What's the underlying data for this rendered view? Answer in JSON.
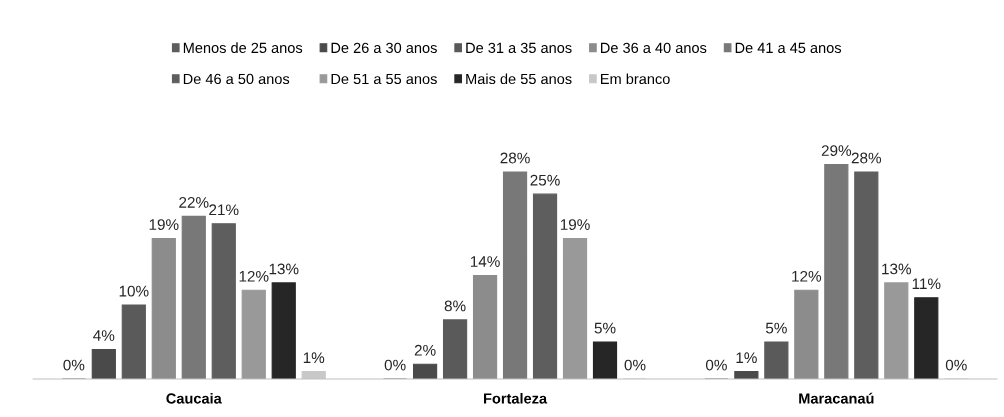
{
  "chart_data": {
    "type": "bar",
    "categories": [
      "Caucaia",
      "Fortaleza",
      "Maracanaú"
    ],
    "series": [
      {
        "name": "Menos de 25 anos",
        "color": "#5e5e5e",
        "values": [
          0,
          0,
          0
        ],
        "value_labels": [
          "0%",
          "0%",
          "0%"
        ]
      },
      {
        "name": "De 26 a 30 anos",
        "color": "#4a4a4a",
        "values": [
          4,
          2,
          1
        ],
        "value_labels": [
          "4%",
          "2%",
          "1%"
        ]
      },
      {
        "name": "De 31 a 35 anos",
        "color": "#5a5a5a",
        "values": [
          10,
          8,
          5
        ],
        "value_labels": [
          "10%",
          "8%",
          "5%"
        ]
      },
      {
        "name": "De 36 a 40 anos",
        "color": "#8c8c8c",
        "values": [
          19,
          14,
          12
        ],
        "value_labels": [
          "19%",
          "14%",
          "12%"
        ]
      },
      {
        "name": "De 41 a 45 anos",
        "color": "#787878",
        "values": [
          22,
          28,
          29
        ],
        "value_labels": [
          "22%",
          "28%",
          "29%"
        ]
      },
      {
        "name": "De 46 a 50 anos",
        "color": "#5e5e5e",
        "values": [
          21,
          25,
          28
        ],
        "value_labels": [
          "21%",
          "25%",
          "28%"
        ]
      },
      {
        "name": "De 51 a 55 anos",
        "color": "#999999",
        "values": [
          12,
          19,
          13
        ],
        "value_labels": [
          "12%",
          "19%",
          "13%"
        ]
      },
      {
        "name": "Mais de 55 anos",
        "color": "#262626",
        "values": [
          13,
          5,
          11
        ],
        "value_labels": [
          "13%",
          "5%",
          "11%"
        ]
      },
      {
        "name": "Em branco",
        "color": "#c8c8c8",
        "values": [
          1,
          0,
          0
        ],
        "value_labels": [
          "1%",
          "0%",
          "0%"
        ]
      }
    ],
    "legend": "top",
    "tick_labels": "x"
  }
}
